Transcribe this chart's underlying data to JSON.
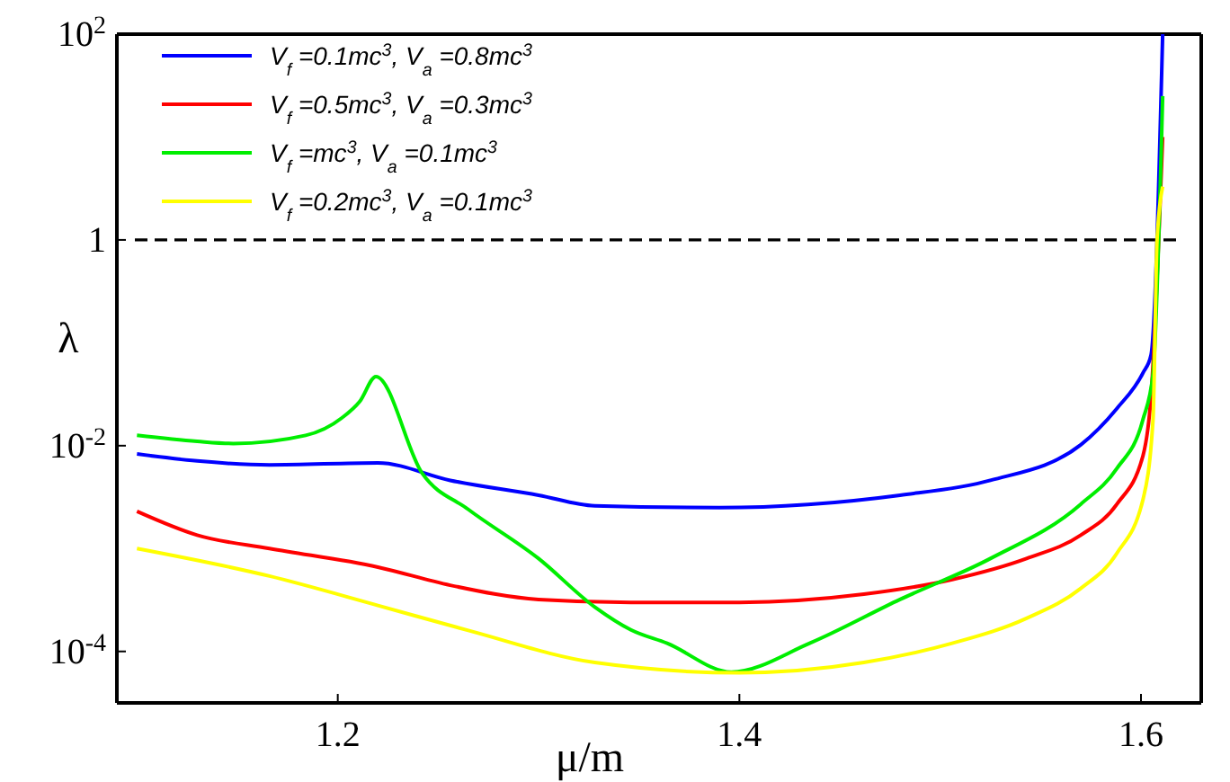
{
  "chart_data": {
    "type": "line",
    "xlabel": "μ/m",
    "ylabel": "λ",
    "log": "y",
    "grid": false,
    "legend": "top left",
    "line_style": "solid",
    "marker": "none",
    "xlim": [
      1.09,
      1.63
    ],
    "xticks": [
      1.2,
      1.4,
      1.6
    ],
    "ylim": [
      3.16e-05,
      100
    ],
    "yticks": [
      {
        "value": 0.0001,
        "label": "10$^{-4}$"
      },
      {
        "value": 0.01,
        "label": "10$^{-2}$"
      },
      1,
      {
        "value": 100,
        "label": "10$^{2}$"
      }
    ],
    "ref_lines": [
      {
        "axis": "y",
        "value": 1,
        "line_style": "dashed",
        "color": "#000000"
      }
    ],
    "series": [
      {
        "name": "V$_{f}$ =0.1mc$^{3}$, V$_{a}$ =0.8mc$^{3}$",
        "color": "#0000ff",
        "x": [
          1.1,
          1.13,
          1.166,
          1.22,
          1.256,
          1.3,
          1.328,
          1.39,
          1.48,
          1.525,
          1.57,
          1.588,
          1.601,
          1.605,
          1.6108
        ],
        "values": [
          0.0083,
          0.0071,
          0.0065,
          0.0068,
          0.0046,
          0.0033,
          0.0026,
          0.0025,
          0.0033,
          0.0046,
          0.0102,
          0.023,
          0.051,
          0.076,
          100
        ]
      },
      {
        "name": "V$_{f}$ =0.5mc$^{3}$, V$_{a}$ =0.3mc$^{3}$",
        "color": "#ff0000",
        "x": [
          1.1,
          1.13,
          1.166,
          1.22,
          1.256,
          1.3,
          1.346,
          1.4,
          1.462,
          1.506,
          1.543,
          1.57,
          1.588,
          1.601,
          1.605,
          1.6108
        ],
        "values": [
          0.0023,
          0.00135,
          0.001,
          0.00066,
          0.00044,
          0.00032,
          0.0003,
          0.0003,
          0.00036,
          0.0005,
          0.0008,
          0.00135,
          0.0027,
          0.008,
          0.03,
          10
        ]
      },
      {
        "name": "V$_{f}$ =mc$^{3}$, V$_{a}$ =0.1mc$^{3}$",
        "color": "#00ee00",
        "x": [
          1.1,
          1.13,
          1.148,
          1.184,
          1.202,
          1.211,
          1.219,
          1.242,
          1.265,
          1.3,
          1.328,
          1.346,
          1.364,
          1.396,
          1.435,
          1.48,
          1.525,
          1.57,
          1.588,
          1.601,
          1.606,
          1.6108
        ],
        "values": [
          0.0126,
          0.011,
          0.0105,
          0.0126,
          0.0186,
          0.027,
          0.047,
          0.0054,
          0.0024,
          0.0008,
          0.00027,
          0.000162,
          0.00012,
          6.3e-05,
          0.00012,
          0.00032,
          0.0008,
          0.0027,
          0.006,
          0.018,
          0.05,
          25
        ]
      },
      {
        "name": "V$_{f}$ =0.2mc$^{3}$, V$_{a}$ =0.1mc$^{3}$",
        "color": "#ffff00",
        "x": [
          1.1,
          1.166,
          1.22,
          1.265,
          1.328,
          1.4,
          1.462,
          1.506,
          1.543,
          1.57,
          1.588,
          1.601,
          1.606,
          1.608,
          1.6108
        ],
        "values": [
          0.001,
          0.00054,
          0.00028,
          0.00016,
          7.8e-05,
          6.2e-05,
          7.8e-05,
          0.00012,
          0.00021,
          0.00041,
          0.0009,
          0.003,
          0.018,
          1,
          3.3
        ]
      }
    ]
  }
}
